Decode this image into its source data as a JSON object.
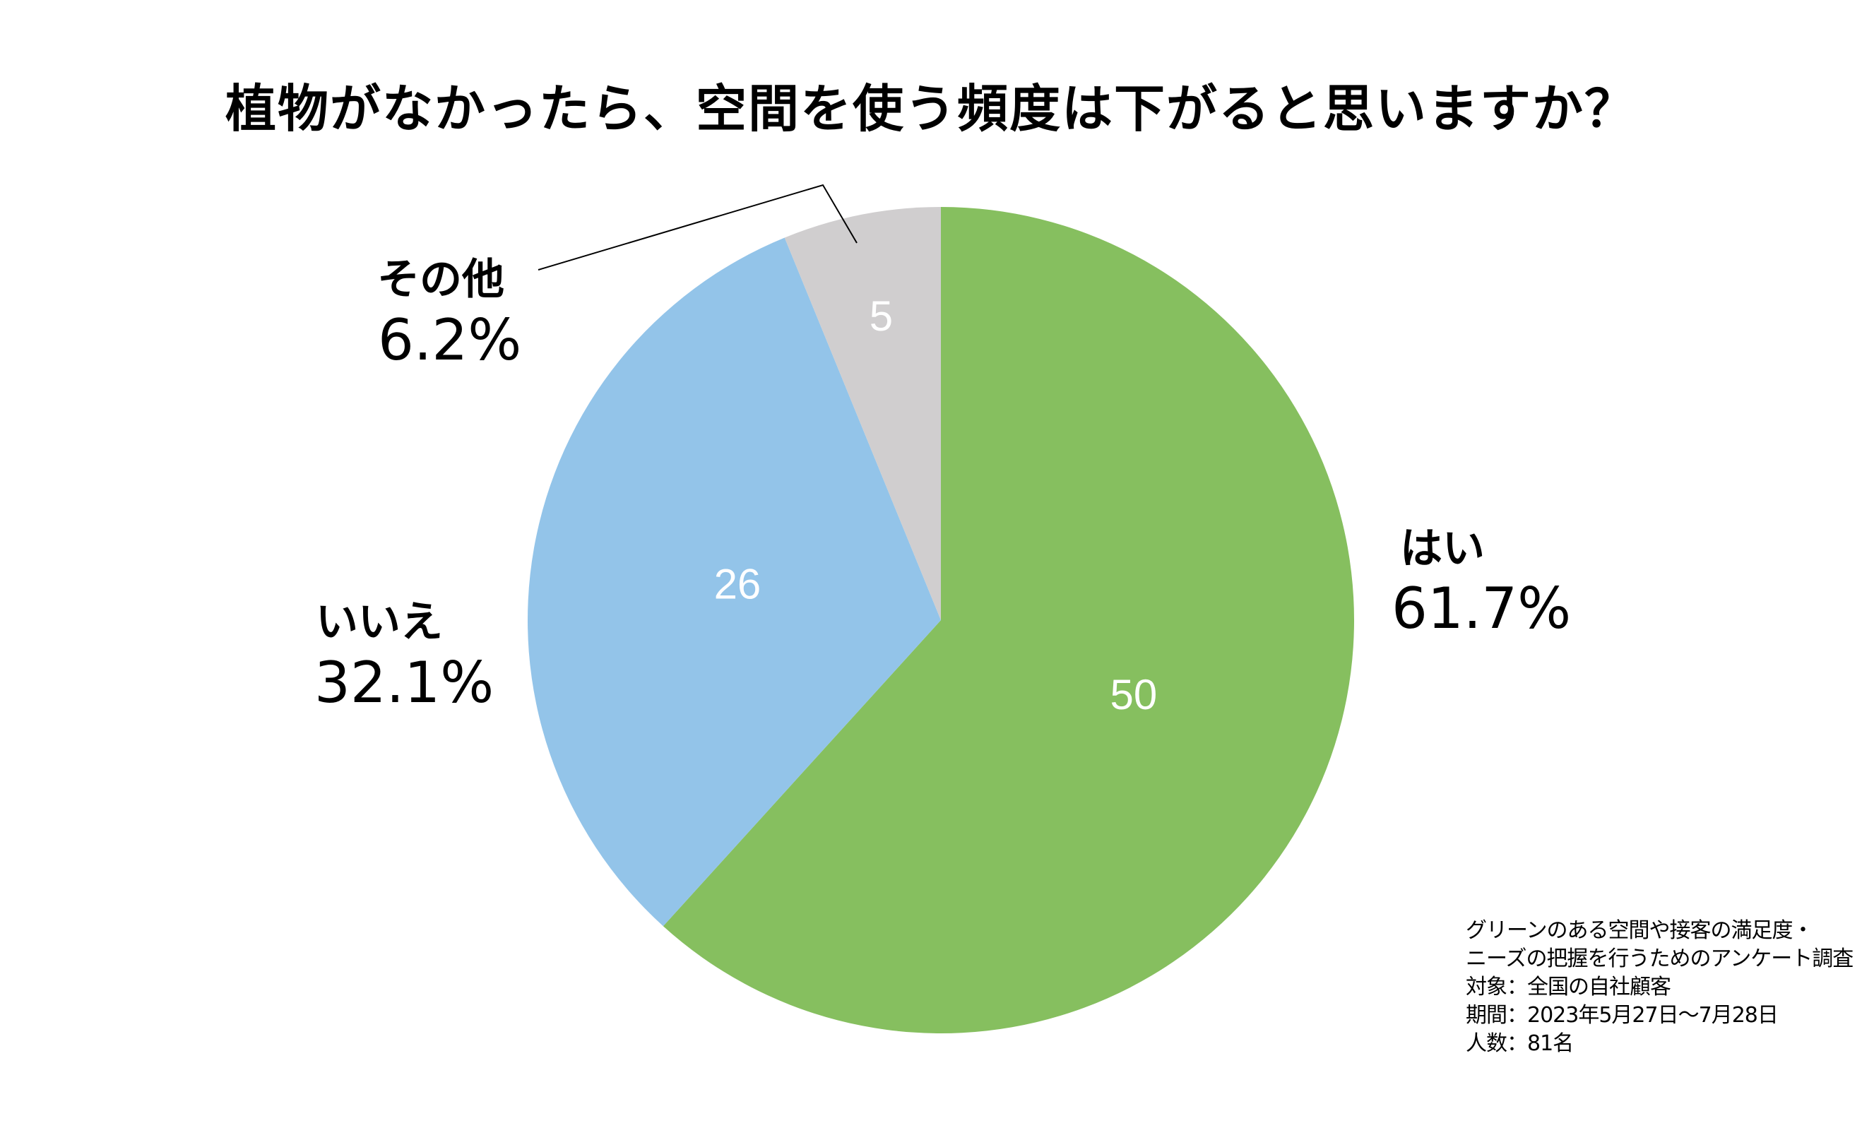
{
  "title": "植物がなかったら、空間を使う頻度は下がると思いますか？",
  "chart_data": {
    "type": "pie",
    "title": "植物がなかったら、空間を使う頻度は下がると思いますか？",
    "slices": [
      {
        "label": "はい",
        "value": 50,
        "percent": "61.7%",
        "color": "#86BF5F"
      },
      {
        "label": "いいえ",
        "value": 26,
        "percent": "32.1%",
        "color": "#93C4E9"
      },
      {
        "label": "その他",
        "value": 5,
        "percent": "6.2%",
        "color": "#D0CECF"
      }
    ],
    "start": "12 o'clock",
    "direction": "clockwise"
  },
  "labels": {
    "yes_name": "はい",
    "yes_pct": "61.7%",
    "no_name": "いいえ",
    "no_pct": "32.1%",
    "other_name": "その他",
    "other_pct": "6.2%"
  },
  "notes": [
    "グリーンのある空間や接客の満足度・",
    "ニーズの把握を行うためのアンケート調査",
    "対象：全国の自社顧客",
    "期間：2023年5月27日〜7月28日",
    "人数：81名"
  ]
}
